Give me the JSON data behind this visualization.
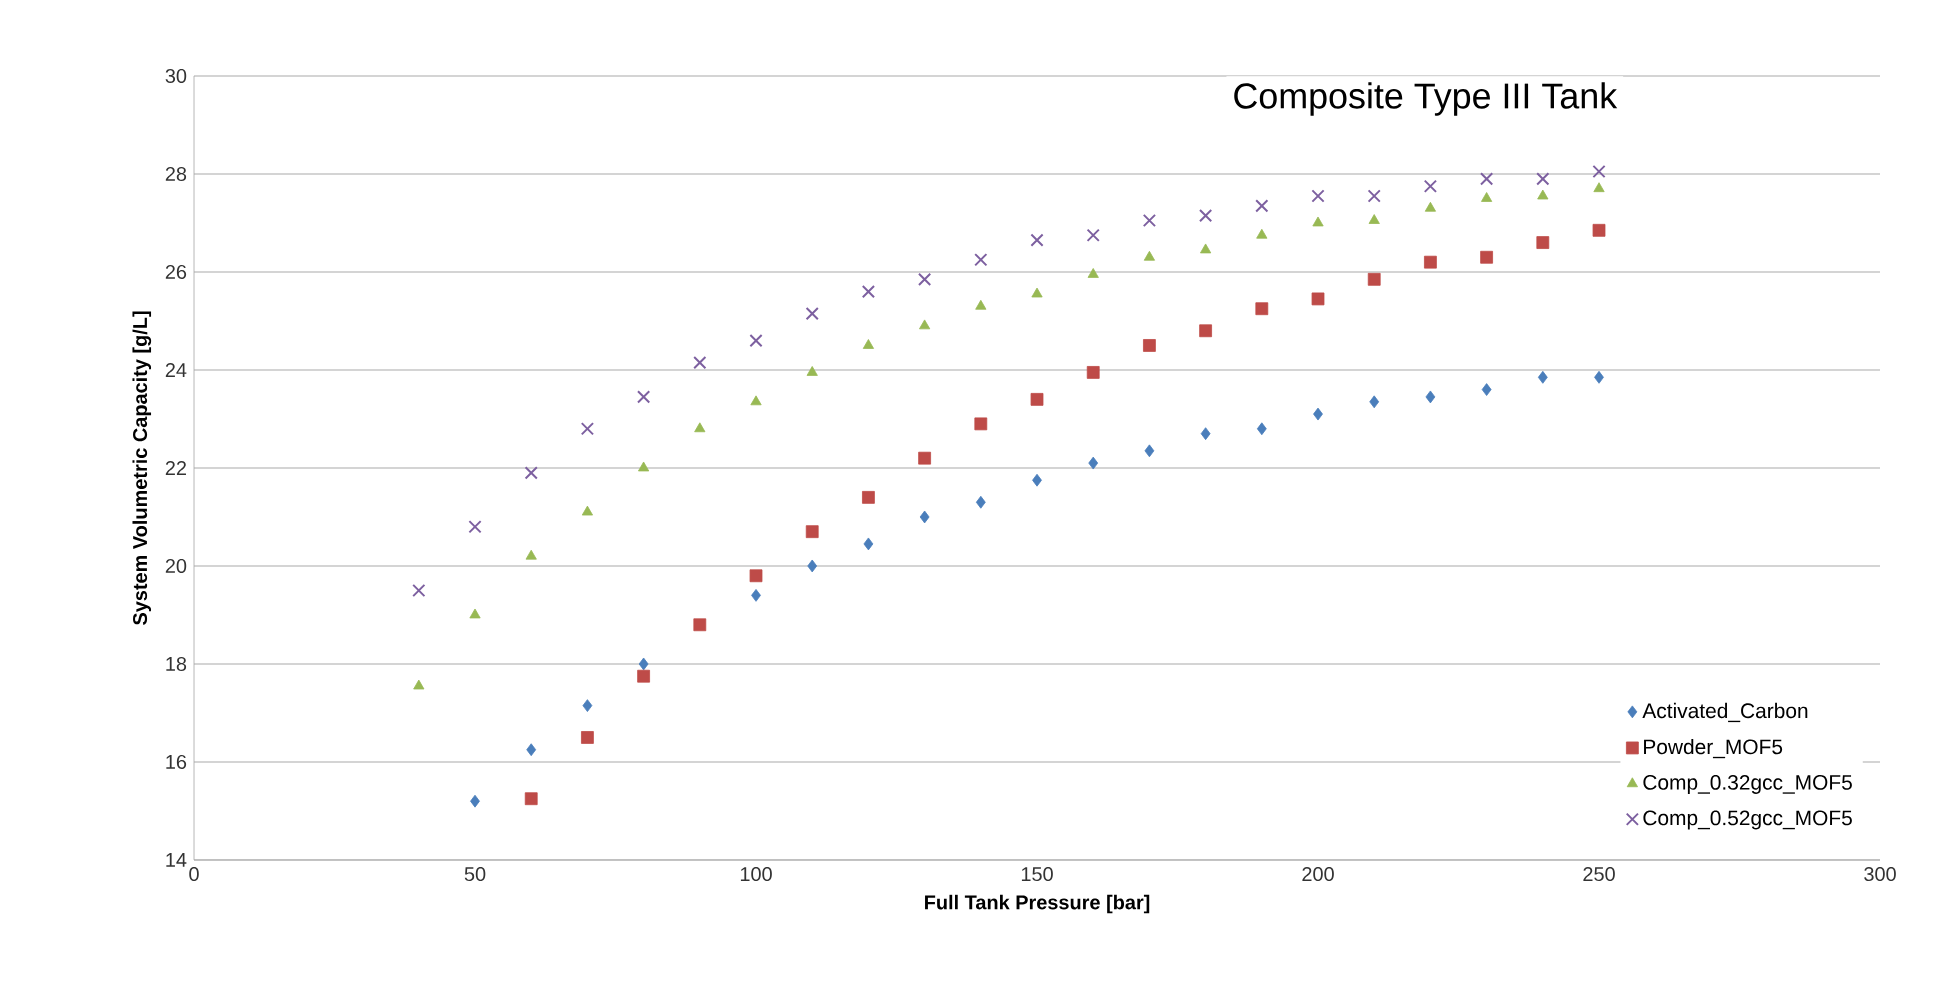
{
  "chart_data": {
    "type": "scatter",
    "title": "Composite Type III Tank",
    "xlabel": "Full Tank Pressure [bar]",
    "ylabel": "System Volumetric Capacity [g/L]",
    "xlim": [
      0,
      300
    ],
    "xticks": [
      0,
      50,
      100,
      150,
      200,
      250,
      300
    ],
    "ylim": [
      14,
      30
    ],
    "yticks": [
      14,
      16,
      18,
      20,
      22,
      24,
      26,
      28,
      30
    ],
    "grid": "y",
    "legend": "bottom right",
    "series": [
      {
        "name": "Activated_Carbon",
        "color": "#4a7ebb",
        "marker": "diamond",
        "x": [
          50,
          60,
          70,
          80,
          90,
          100,
          110,
          120,
          130,
          140,
          150,
          160,
          170,
          180,
          190,
          200,
          210,
          220,
          230,
          240,
          250
        ],
        "values": [
          15.2,
          16.25,
          17.15,
          18.0,
          null,
          19.4,
          20.0,
          20.45,
          21.0,
          21.3,
          21.75,
          22.1,
          22.35,
          22.7,
          22.8,
          23.1,
          23.35,
          23.45,
          23.6,
          23.85,
          23.85
        ]
      },
      {
        "name": "Powder_MOF5",
        "color": "#be4b48",
        "marker": "square",
        "x": [
          60,
          70,
          80,
          90,
          100,
          110,
          120,
          130,
          140,
          150,
          160,
          170,
          180,
          190,
          200,
          210,
          220,
          230,
          240,
          250
        ],
        "values": [
          15.25,
          16.5,
          17.75,
          18.8,
          19.8,
          20.7,
          21.4,
          22.2,
          22.9,
          23.4,
          23.95,
          24.5,
          24.8,
          25.25,
          25.45,
          25.85,
          26.2,
          26.3,
          26.6,
          26.85
        ]
      },
      {
        "name": "Comp_0.32gcc_MOF5",
        "color": "#98b954",
        "marker": "triangle",
        "x": [
          40,
          50,
          60,
          70,
          80,
          90,
          100,
          110,
          120,
          130,
          140,
          150,
          160,
          170,
          180,
          190,
          200,
          210,
          220,
          230,
          240,
          250
        ],
        "values": [
          17.55,
          19.0,
          20.2,
          21.1,
          22.0,
          22.8,
          23.35,
          23.95,
          24.5,
          24.9,
          25.3,
          25.55,
          25.95,
          26.3,
          26.45,
          26.75,
          27.0,
          27.05,
          27.3,
          27.5,
          27.55,
          27.7
        ]
      },
      {
        "name": "Comp_0.52gcc_MOF5",
        "color": "#7d60a0",
        "marker": "cross",
        "x": [
          40,
          50,
          60,
          70,
          80,
          90,
          100,
          110,
          120,
          130,
          140,
          150,
          160,
          170,
          180,
          190,
          200,
          210,
          220,
          230,
          240,
          250
        ],
        "values": [
          19.5,
          20.8,
          21.9,
          22.8,
          23.45,
          24.15,
          24.6,
          25.15,
          25.6,
          25.85,
          26.25,
          26.65,
          26.75,
          27.05,
          27.15,
          27.35,
          27.55,
          27.55,
          27.75,
          27.9,
          27.9,
          28.05
        ]
      }
    ]
  }
}
